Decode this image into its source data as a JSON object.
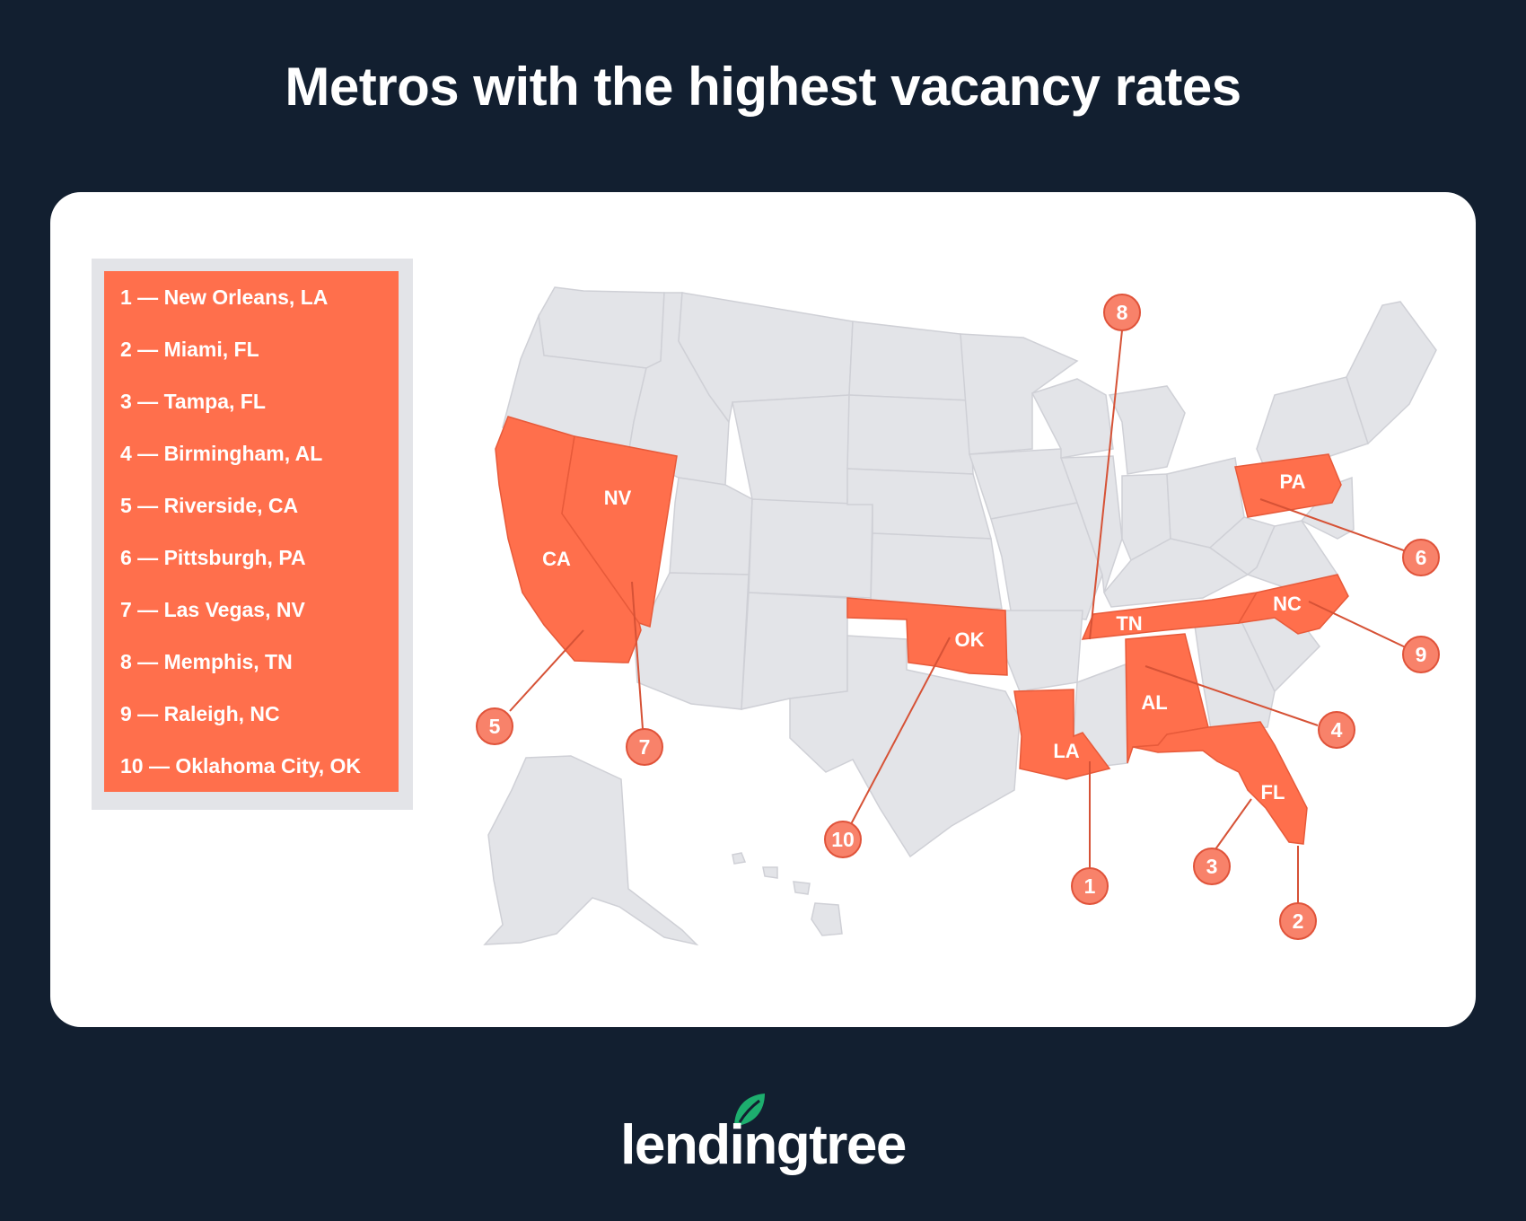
{
  "title": "Metros with the highest vacancy rates",
  "legend": [
    "1 — New Orleans, LA",
    "2 — Miami, FL",
    "3 — Tampa, FL",
    "4 — Birmingham, AL",
    "5 — Riverside, CA",
    "6 — Pittsburgh, PA",
    "7 — Las Vegas, NV",
    "8 — Memphis, TN",
    "9 — Raleigh, NC",
    "10 — Oklahoma City, OK"
  ],
  "states": {
    "CA": "CA",
    "NV": "NV",
    "OK": "OK",
    "TN": "TN",
    "NC": "NC",
    "PA": "PA",
    "AL": "AL",
    "LA": "LA",
    "FL": "FL"
  },
  "markers": [
    "1",
    "2",
    "3",
    "4",
    "5",
    "6",
    "7",
    "8",
    "9",
    "10"
  ],
  "colors": {
    "background": "#121f30",
    "highlight": "#ff6f4c",
    "state_gray": "#e3e4e8",
    "logo_green": "#1dae6e"
  },
  "brand": {
    "logo_text": "lendingtree",
    "logo_icon": "leaf-icon"
  }
}
